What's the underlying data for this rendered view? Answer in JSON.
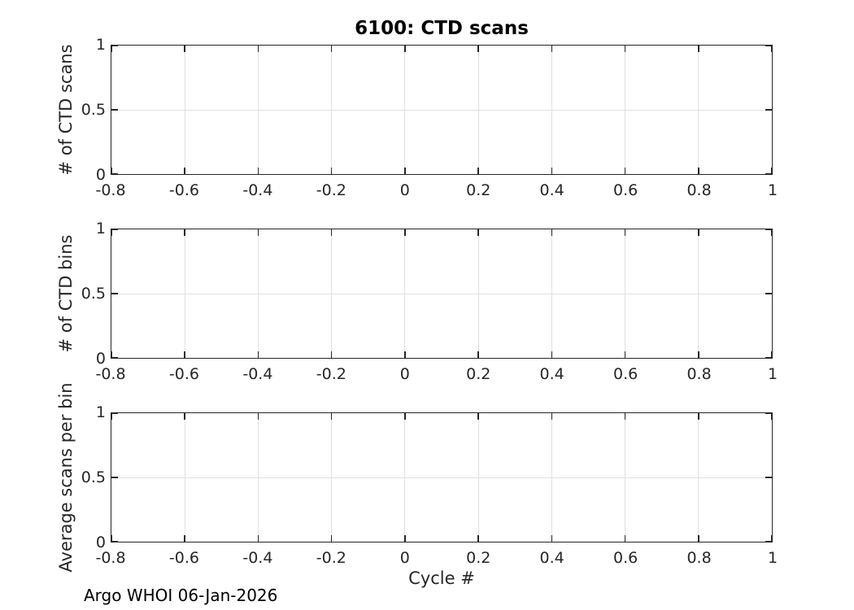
{
  "figure": {
    "footer": "Argo WHOI 06-Jan-2026",
    "background_color": "#ffffff",
    "axis_color": "#262626",
    "grid_color": "#e0e0e0",
    "title_color": "#000000"
  },
  "chart_data": [
    {
      "type": "line",
      "title": "6100: CTD scans",
      "xlabel": "",
      "ylabel": "# of CTD scans",
      "xlim": [
        -0.8,
        1
      ],
      "ylim": [
        0,
        1
      ],
      "xticks": [
        -0.8,
        -0.6,
        -0.4,
        -0.2,
        0,
        0.2,
        0.4,
        0.6,
        0.8,
        1
      ],
      "xtick_labels": [
        "-0.8",
        "-0.6",
        "-0.4",
        "-0.2",
        "0",
        "0.2",
        "0.4",
        "0.6",
        "0.8",
        "1"
      ],
      "yticks": [
        0,
        0.5,
        1
      ],
      "ytick_labels": [
        "0",
        "0.5",
        "1"
      ],
      "grid": true,
      "box": true,
      "legend": null,
      "series": []
    },
    {
      "type": "line",
      "title": "",
      "xlabel": "",
      "ylabel": "# of CTD bins",
      "xlim": [
        -0.8,
        1
      ],
      "ylim": [
        0,
        1
      ],
      "xticks": [
        -0.8,
        -0.6,
        -0.4,
        -0.2,
        0,
        0.2,
        0.4,
        0.6,
        0.8,
        1
      ],
      "xtick_labels": [
        "-0.8",
        "-0.6",
        "-0.4",
        "-0.2",
        "0",
        "0.2",
        "0.4",
        "0.6",
        "0.8",
        "1"
      ],
      "yticks": [
        0,
        0.5,
        1
      ],
      "ytick_labels": [
        "0",
        "0.5",
        "1"
      ],
      "grid": true,
      "box": true,
      "legend": null,
      "series": []
    },
    {
      "type": "line",
      "title": "",
      "xlabel": "Cycle #",
      "ylabel": "Average scans per bin",
      "xlim": [
        -0.8,
        1
      ],
      "ylim": [
        0,
        1
      ],
      "xticks": [
        -0.8,
        -0.6,
        -0.4,
        -0.2,
        0,
        0.2,
        0.4,
        0.6,
        0.8,
        1
      ],
      "xtick_labels": [
        "-0.8",
        "-0.6",
        "-0.4",
        "-0.2",
        "0",
        "0.2",
        "0.4",
        "0.6",
        "0.8",
        "1"
      ],
      "yticks": [
        0,
        0.5,
        1
      ],
      "ytick_labels": [
        "0",
        "0.5",
        "1"
      ],
      "grid": true,
      "box": true,
      "legend": null,
      "series": []
    }
  ]
}
